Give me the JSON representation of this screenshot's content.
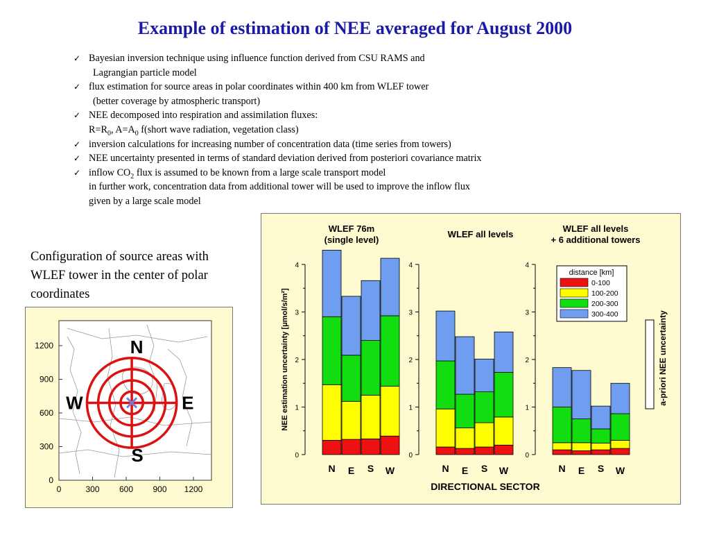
{
  "slide": {
    "title": "Example of estimation of NEE averaged for August 2000"
  },
  "bullets": [
    {
      "lines": [
        {
          "segments": [
            {
              "t": "Bayesian inversion technique using influence function derived from CSU RAMS and"
            }
          ]
        },
        {
          "segments": [
            {
              "t": "Lagrangian particle model"
            }
          ],
          "indent": true
        }
      ]
    },
    {
      "lines": [
        {
          "segments": [
            {
              "t": "flux estimation for source areas in polar coordinates within 400 km from WLEF tower"
            }
          ]
        },
        {
          "segments": [
            {
              "t": "(better coverage by atmospheric transport)"
            }
          ],
          "indent": true
        }
      ]
    },
    {
      "lines": [
        {
          "segments": [
            {
              "t": "NEE decomposed into respiration and  assimilation fluxes:"
            }
          ]
        },
        {
          "segments": [
            {
              "t": "R=R"
            },
            {
              "t": "0",
              "sub": true
            },
            {
              "t": ", A=A"
            },
            {
              "t": "0",
              "sub": true
            },
            {
              "t": " f(short wave radiation, vegetation class)"
            }
          ]
        }
      ]
    },
    {
      "lines": [
        {
          "segments": [
            {
              "t": "inversion calculations for increasing number of concentration data (time series from towers)"
            }
          ]
        }
      ]
    },
    {
      "lines": [
        {
          "segments": [
            {
              "t": "NEE uncertainty presented in terms of standard deviation derived from posteriori covariance matrix"
            }
          ]
        }
      ]
    },
    {
      "lines": [
        {
          "segments": [
            {
              "t": "inflow CO"
            },
            {
              "t": "2",
              "sub": true
            },
            {
              "t": " flux is assumed to be known from a large scale transport model"
            }
          ]
        },
        {
          "segments": [
            {
              "t": "in further work, concentration data from additional tower will be used to improve the inflow flux"
            }
          ]
        },
        {
          "segments": [
            {
              "t": "given by a large scale model"
            }
          ]
        }
      ]
    }
  ],
  "config_caption": {
    "text": "Configuration of source areas with WLEF tower in the center of polar coordinates"
  },
  "map": {
    "x_ticks": [
      "0",
      "300",
      "600",
      "900",
      "1200"
    ],
    "y_ticks": [
      "0",
      "300",
      "600",
      "900",
      "1200"
    ],
    "directions": {
      "north": "N",
      "east": "E",
      "south": "S",
      "west": "W"
    },
    "ring_color": "#dd1111",
    "tower_color": "#7a7ad8"
  },
  "chart_data": {
    "type": "bar",
    "stacked": true,
    "x_axis_title": "DIRECTIONAL SECTOR",
    "y_axis_title": "NEE estimation uncertainty [μmol/s/m²]",
    "apriori_label": "a-priori NEE uncertainty",
    "ylim": [
      0,
      4
    ],
    "y_ticks": [
      0,
      1,
      2,
      3,
      4
    ],
    "categories": [
      "N",
      "E",
      "S",
      "W"
    ],
    "legend": {
      "title": "distance [km]",
      "placement": "top-right of third panel",
      "entries": [
        {
          "label": "0-100",
          "color": "#ee1111"
        },
        {
          "label": "100-200",
          "color": "#ffff00"
        },
        {
          "label": "200-300",
          "color": "#11dd11"
        },
        {
          "label": "300-400",
          "color": "#6f9ef0"
        }
      ]
    },
    "panels": [
      {
        "title_lines": [
          "WLEF 76m",
          "(single level)"
        ],
        "series": [
          {
            "name": "0-100",
            "values": [
              0.3,
              0.32,
              0.33,
              0.39
            ]
          },
          {
            "name": "100-200",
            "values": [
              1.17,
              0.8,
              0.92,
              1.05
            ]
          },
          {
            "name": "200-300",
            "values": [
              1.43,
              0.97,
              1.15,
              1.48
            ]
          },
          {
            "name": "300-400",
            "values": [
              1.4,
              1.24,
              1.26,
              1.21
            ]
          }
        ],
        "totals": [
          4.3,
          3.33,
          3.66,
          4.13
        ]
      },
      {
        "title_lines": [
          "WLEF all levels"
        ],
        "series": [
          {
            "name": "0-100",
            "values": [
              0.16,
              0.13,
              0.16,
              0.2
            ]
          },
          {
            "name": "100-200",
            "values": [
              0.8,
              0.43,
              0.51,
              0.59
            ]
          },
          {
            "name": "200-300",
            "values": [
              1.01,
              0.71,
              0.65,
              0.94
            ]
          },
          {
            "name": "300-400",
            "values": [
              1.05,
              1.21,
              0.69,
              0.85
            ]
          }
        ],
        "totals": [
          3.02,
          2.48,
          2.01,
          2.58
        ]
      },
      {
        "title_lines": [
          "WLEF all levels",
          "+ 6 additional towers"
        ],
        "series": [
          {
            "name": "0-100",
            "values": [
              0.1,
              0.08,
              0.1,
              0.13
            ]
          },
          {
            "name": "100-200",
            "values": [
              0.15,
              0.17,
              0.14,
              0.17
            ]
          },
          {
            "name": "200-300",
            "values": [
              0.75,
              0.5,
              0.3,
              0.56
            ]
          },
          {
            "name": "300-400",
            "values": [
              0.83,
              1.02,
              0.48,
              0.64
            ]
          }
        ],
        "totals": [
          1.83,
          1.77,
          1.02,
          1.5
        ]
      }
    ]
  }
}
